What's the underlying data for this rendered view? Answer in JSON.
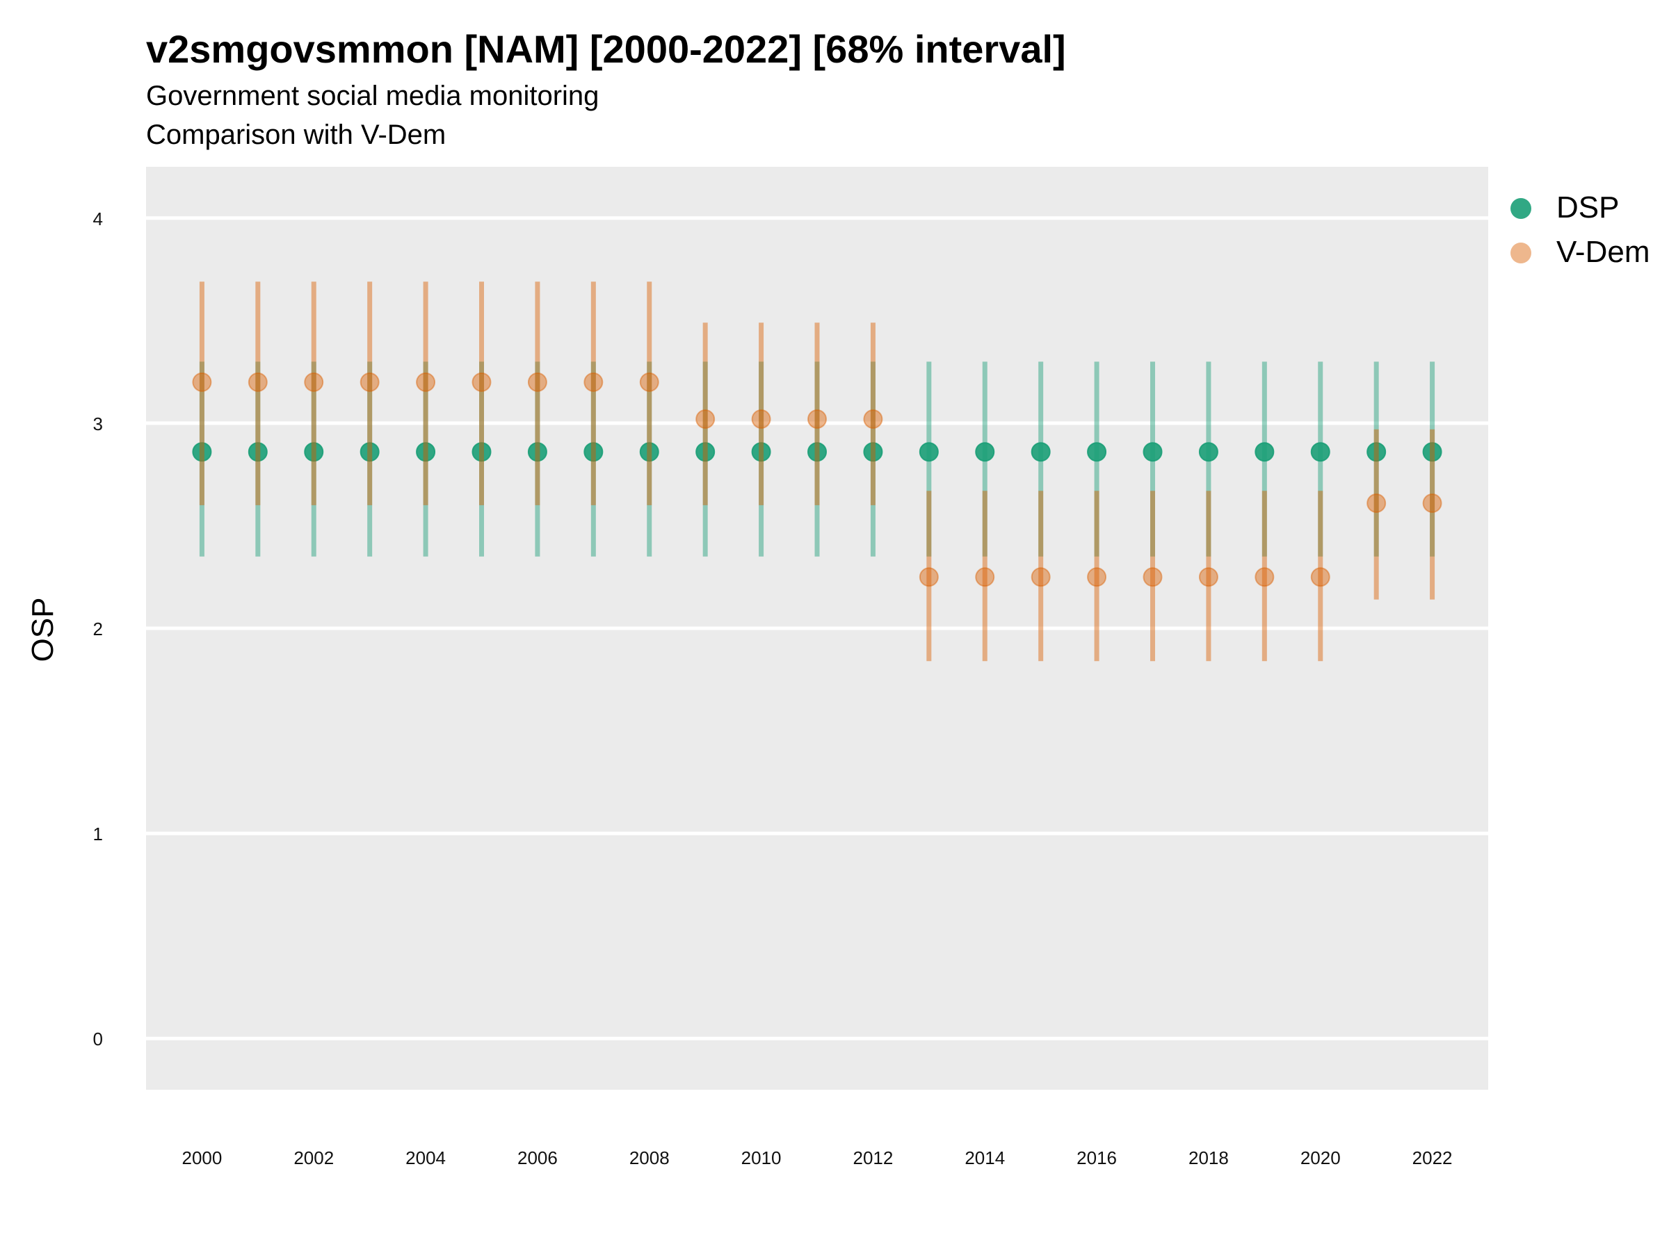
{
  "chart_data": {
    "type": "scatter",
    "title": "v2smgovsmmon [NAM] [2000-2022] [68% interval]",
    "subtitle": "Government social media monitoring",
    "subtitle2": "Comparison with V-Dem",
    "ylabel": "OSP",
    "xlabel": "",
    "ylim": [
      -0.25,
      4.25
    ],
    "xlim": [
      1999.0,
      2023.0
    ],
    "yticks": [
      0,
      1,
      2,
      3,
      4
    ],
    "xticks": [
      2000,
      2002,
      2004,
      2006,
      2008,
      2010,
      2012,
      2014,
      2016,
      2018,
      2020,
      2022
    ],
    "grid": true,
    "legend_position": "right",
    "x": [
      2000,
      2001,
      2002,
      2003,
      2004,
      2005,
      2006,
      2007,
      2008,
      2009,
      2010,
      2011,
      2012,
      2013,
      2014,
      2015,
      2016,
      2017,
      2018,
      2019,
      2020,
      2021,
      2022
    ],
    "series": [
      {
        "name": "DSP",
        "color": "#1b9e77",
        "values": [
          2.86,
          2.86,
          2.86,
          2.86,
          2.86,
          2.86,
          2.86,
          2.86,
          2.86,
          2.86,
          2.86,
          2.86,
          2.86,
          2.86,
          2.86,
          2.86,
          2.86,
          2.86,
          2.86,
          2.86,
          2.86,
          2.86,
          2.86
        ],
        "lower": [
          2.35,
          2.35,
          2.35,
          2.35,
          2.35,
          2.35,
          2.35,
          2.35,
          2.35,
          2.35,
          2.35,
          2.35,
          2.35,
          2.35,
          2.35,
          2.35,
          2.35,
          2.35,
          2.35,
          2.35,
          2.35,
          2.35,
          2.35
        ],
        "upper": [
          3.3,
          3.3,
          3.3,
          3.3,
          3.3,
          3.3,
          3.3,
          3.3,
          3.3,
          3.3,
          3.3,
          3.3,
          3.3,
          3.3,
          3.3,
          3.3,
          3.3,
          3.3,
          3.3,
          3.3,
          3.3,
          3.3,
          3.3
        ]
      },
      {
        "name": "V-Dem",
        "color": "#d95f02",
        "values": [
          3.2,
          3.2,
          3.2,
          3.2,
          3.2,
          3.2,
          3.2,
          3.2,
          3.2,
          3.02,
          3.02,
          3.02,
          3.02,
          2.25,
          2.25,
          2.25,
          2.25,
          2.25,
          2.25,
          2.25,
          2.25,
          2.61,
          2.61
        ],
        "lower": [
          2.6,
          2.6,
          2.6,
          2.6,
          2.6,
          2.6,
          2.6,
          2.6,
          2.6,
          2.6,
          2.6,
          2.6,
          2.6,
          1.84,
          1.84,
          1.84,
          1.84,
          1.84,
          1.84,
          1.84,
          1.84,
          2.14,
          2.14
        ],
        "upper": [
          3.69,
          3.69,
          3.69,
          3.69,
          3.69,
          3.69,
          3.69,
          3.69,
          3.69,
          3.49,
          3.49,
          3.49,
          3.49,
          2.67,
          2.67,
          2.67,
          2.67,
          2.67,
          2.67,
          2.67,
          2.67,
          2.97,
          2.97
        ]
      }
    ]
  }
}
